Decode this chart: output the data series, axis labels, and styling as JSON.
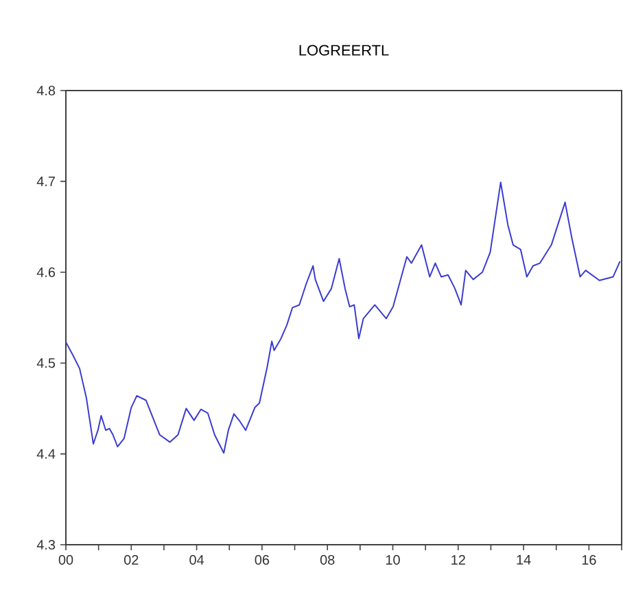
{
  "chart_data": {
    "type": "line",
    "title": "LOGREERTL",
    "x": [
      2000.0,
      2000.21,
      2000.42,
      2000.63,
      2000.84,
      2000.98,
      2001.08,
      2001.22,
      2001.33,
      2001.44,
      2001.58,
      2001.78,
      2002.0,
      2002.17,
      2002.45,
      2002.87,
      2003.18,
      2003.43,
      2003.68,
      2003.92,
      2004.13,
      2004.34,
      2004.55,
      2004.83,
      2004.97,
      2005.14,
      2005.32,
      2005.5,
      2005.78,
      2005.92,
      2006.16,
      2006.3,
      2006.37,
      2006.58,
      2006.76,
      2006.93,
      2007.14,
      2007.35,
      2007.56,
      2007.63,
      2007.88,
      2008.12,
      2008.36,
      2008.54,
      2008.68,
      2008.82,
      2008.96,
      2009.1,
      2009.45,
      2009.8,
      2010.01,
      2010.43,
      2010.57,
      2010.88,
      2011.13,
      2011.3,
      2011.48,
      2011.69,
      2011.9,
      2012.09,
      2012.23,
      2012.46,
      2012.74,
      2012.98,
      2013.3,
      2013.52,
      2013.68,
      2013.91,
      2014.1,
      2014.29,
      2014.5,
      2014.85,
      2015.27,
      2015.48,
      2015.73,
      2015.9,
      2016.32,
      2016.74,
      2016.95
    ],
    "series": [
      {
        "color": "#3b3bd0",
        "values": [
          4.523,
          4.509,
          4.494,
          4.461,
          4.411,
          4.426,
          4.442,
          4.426,
          4.428,
          4.421,
          4.408,
          4.417,
          4.451,
          4.464,
          4.459,
          4.421,
          4.413,
          4.421,
          4.45,
          4.437,
          4.449,
          4.445,
          4.421,
          4.401,
          4.426,
          4.444,
          4.436,
          4.426,
          4.451,
          4.456,
          4.496,
          4.524,
          4.514,
          4.527,
          4.542,
          4.561,
          4.564,
          4.587,
          4.607,
          4.592,
          4.568,
          4.582,
          4.615,
          4.582,
          4.562,
          4.564,
          4.527,
          4.549,
          4.564,
          4.549,
          4.562,
          4.617,
          4.61,
          4.63,
          4.595,
          4.61,
          4.595,
          4.597,
          4.582,
          4.564,
          4.602,
          4.592,
          4.6,
          4.622,
          4.699,
          4.652,
          4.63,
          4.625,
          4.595,
          4.607,
          4.61,
          4.63,
          4.677,
          4.637,
          4.595,
          4.602,
          4.591,
          4.595,
          4.612
        ]
      }
    ],
    "xlim": [
      2000,
      2017
    ],
    "xticks": [
      {
        "value": 2000,
        "label": "00"
      },
      {
        "value": 2001,
        "label": null
      },
      {
        "value": 2002,
        "label": "02"
      },
      {
        "value": 2003,
        "label": null
      },
      {
        "value": 2004,
        "label": "04"
      },
      {
        "value": 2005,
        "label": null
      },
      {
        "value": 2006,
        "label": "06"
      },
      {
        "value": 2007,
        "label": null
      },
      {
        "value": 2008,
        "label": "08"
      },
      {
        "value": 2009,
        "label": null
      },
      {
        "value": 2010,
        "label": "10"
      },
      {
        "value": 2011,
        "label": null
      },
      {
        "value": 2012,
        "label": "12"
      },
      {
        "value": 2013,
        "label": null
      },
      {
        "value": 2014,
        "label": "14"
      },
      {
        "value": 2015,
        "label": null
      },
      {
        "value": 2016,
        "label": "16"
      },
      {
        "value": 2017,
        "label": null
      }
    ],
    "ylim": [
      4.3,
      4.8
    ],
    "yticks": [
      4.3,
      4.4,
      4.5,
      4.6,
      4.7,
      4.8
    ],
    "grid": false,
    "marker": "none",
    "line_style": "solid"
  }
}
